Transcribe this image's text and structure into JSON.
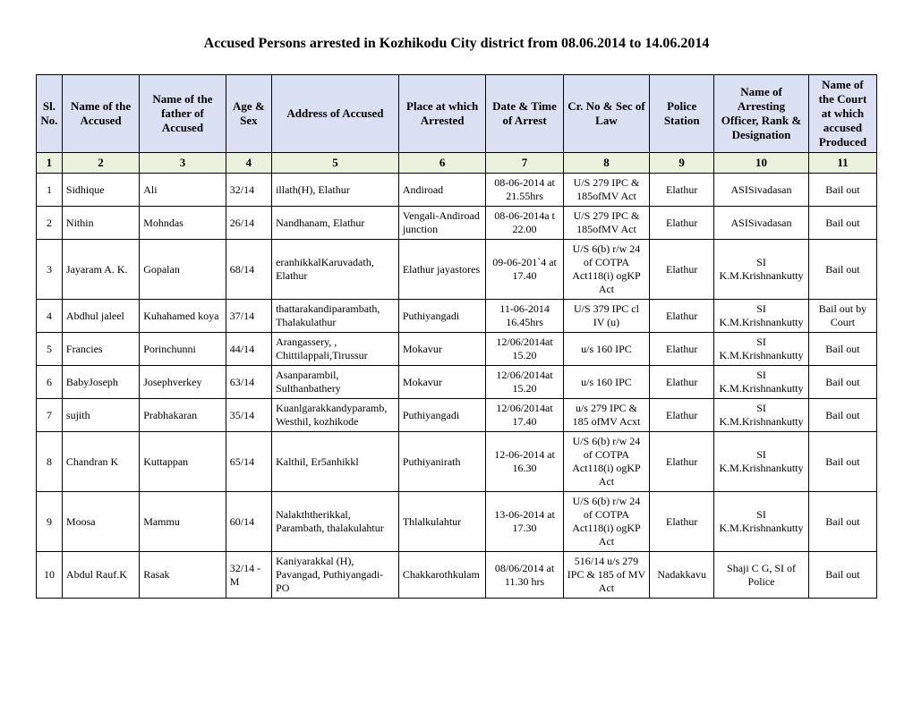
{
  "title": "Accused Persons arrested in  Kozhikodu City district from  08.06.2014 to 14.06.2014",
  "headers": {
    "c1": "Sl. No.",
    "c2": "Name of the Accused",
    "c3": "Name of the father of Accused",
    "c4": "Age & Sex",
    "c5": "Address of Accused",
    "c6": "Place at which Arrested",
    "c7": "Date & Time of Arrest",
    "c8": "Cr. No & Sec of Law",
    "c9": "Police Station",
    "c10": "Name of Arresting Officer, Rank & Designation",
    "c11": "Name of the Court at which accused Produced"
  },
  "colnums": {
    "n1": "1",
    "n2": "2",
    "n3": "3",
    "n4": "4",
    "n5": "5",
    "n6": "6",
    "n7": "7",
    "n8": "8",
    "n9": "9",
    "n10": "10",
    "n11": "11"
  },
  "rows": [
    {
      "sl": "1",
      "name": "Sidhique",
      "father": "Ali",
      "age": "32/14",
      "addr": "illath(H), Elathur",
      "place": "Andiroad",
      "date": "08-06-2014 at 21.55hrs",
      "law": "U/S 279 IPC & 185ofMV Act",
      "station": "Elathur",
      "officer": "ASISivadasan",
      "court": "Bail out"
    },
    {
      "sl": "2",
      "name": "Nithin",
      "father": "Mohndas",
      "age": "26/14",
      "addr": "Nandhanam, Elathur",
      "place": "Vengali-Andiroad junction",
      "date": "08-06-2014a t 22.00",
      "law": "U/S 279 IPC & 185ofMV Act",
      "station": "Elathur",
      "officer": "ASISivadasan",
      "court": "Bail out"
    },
    {
      "sl": "3",
      "name": "Jayaram A. K.",
      "father": "Gopalan",
      "age": "68/14",
      "addr": "eranhikkalKaruvadath, Elathur",
      "place": "Elathur jayastores",
      "date": "09-06-201`4 at 17.40",
      "law": "U/S 6(b) r/w 24 of COTPA Act118(i) ogKP Act",
      "station": "Elathur",
      "officer": "SI K.M.Krishnankutty",
      "court": "Bail out"
    },
    {
      "sl": "4",
      "name": "Abdhul jaleel",
      "father": "Kuhahamed koya",
      "age": "37/14",
      "addr": "thattarakandiparambath, Thalakulathur",
      "place": "Puthiyangadi",
      "date": "11-06-2014 16.45hrs",
      "law": "U/S 379 IPC cl IV (u)",
      "station": "Elathur",
      "officer": "SI K.M.Krishnankutty",
      "court": "Bail out by Court"
    },
    {
      "sl": "5",
      "name": "Francies",
      "father": "Porinchunni",
      "age": "44/14",
      "addr": "Arangassery, , Chittilappali,Tirussur",
      "place": "Mokavur",
      "date": "12/06/2014at 15.20",
      "law": "u/s 160 IPC",
      "station": "Elathur",
      "officer": "SI K.M.Krishnankutty",
      "court": "Bail out"
    },
    {
      "sl": "6",
      "name": "BabyJoseph",
      "father": "Josephverkey",
      "age": "63/14",
      "addr": "Asanparambil, Sulthanbathery",
      "place": "Mokavur",
      "date": "12/06/2014at 15.20",
      "law": "u/s 160 IPC",
      "station": "Elathur",
      "officer": "SI K.M.Krishnankutty",
      "court": "Bail out"
    },
    {
      "sl": "7",
      "name": "sujith",
      "father": "Prabhakaran",
      "age": "35/14",
      "addr": "Kuanlgarakkandyparamb, Westhil, kozhikode",
      "place": "Puthiyangadi",
      "date": "12/06/2014at 17.40",
      "law": "u/s 279 IPC & 185 ofMV Acxt",
      "station": "Elathur",
      "officer": "SI K.M.Krishnankutty",
      "court": "Bail out"
    },
    {
      "sl": "8",
      "name": "Chandran K",
      "father": "Kuttappan",
      "age": "65/14",
      "addr": "Kalthil, Er5anhikkl",
      "place": "Puthiyanirath",
      "date": "12-06-2014 at 16.30",
      "law": "U/S 6(b) r/w 24 of COTPA Act118(i) ogKP Act",
      "station": "Elathur",
      "officer": "SI K.M.Krishnankutty",
      "court": "Bail out"
    },
    {
      "sl": "9",
      "name": "Moosa",
      "father": "Mammu",
      "age": "60/14",
      "addr": "Nalakththerikkal, Parambath, thalakulahtur",
      "place": "Thlalkulahtur",
      "date": "13-06-2014 at 17.30",
      "law": "U/S 6(b) r/w 24 of COTPA Act118(i) ogKP Act",
      "station": "Elathur",
      "officer": "SI K.M.Krishnankutty",
      "court": "Bail out"
    },
    {
      "sl": "10",
      "name": "Abdul Rauf.K",
      "father": "Rasak",
      "age": "32/14 - M",
      "addr": "Kaniyarakkal (H), Pavangad, Puthiyangadi-PO",
      "place": "Chakkarothkulam",
      "date": "08/06/2014 at 11.30 hrs",
      "law": "516/14 u/s 279 IPC & 185 of MV Act",
      "station": "Nadakkavu",
      "officer": "Shaji C G, SI of Police",
      "court": "Bail out"
    }
  ]
}
